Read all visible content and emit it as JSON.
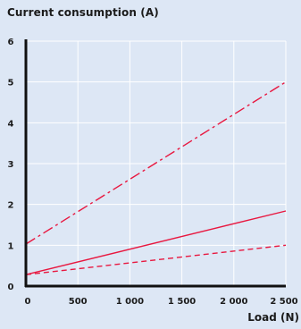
{
  "chart_data": {
    "type": "line",
    "title": "Current consumption (A)",
    "xlabel": "Load (N)",
    "ylabel": "",
    "xlim": [
      0,
      2500
    ],
    "ylim": [
      0,
      6
    ],
    "x_ticks": [
      0,
      500,
      1000,
      1500,
      2000,
      2500
    ],
    "x_tick_labels": [
      "0",
      "500",
      "1 000",
      "1 500",
      "2 000",
      "2 500"
    ],
    "y_ticks": [
      0,
      1,
      2,
      3,
      4,
      5,
      6
    ],
    "y_tick_labels": [
      "0",
      "1",
      "2",
      "3",
      "4",
      "5",
      "6"
    ],
    "grid": true,
    "series": [
      {
        "dash": "dashdot",
        "color": "#e8173f",
        "x": [
          0,
          2500
        ],
        "y": [
          1.03,
          5.0
        ]
      },
      {
        "dash": "solid",
        "color": "#e8173f",
        "x": [
          0,
          2500
        ],
        "y": [
          0.28,
          1.84
        ]
      },
      {
        "dash": "dashed",
        "color": "#e8173f",
        "x": [
          0,
          2500
        ],
        "y": [
          0.28,
          1.0
        ]
      }
    ],
    "colors": {
      "background": "#dde7f5",
      "grid": "#ffffff",
      "axis": "#111111"
    }
  }
}
